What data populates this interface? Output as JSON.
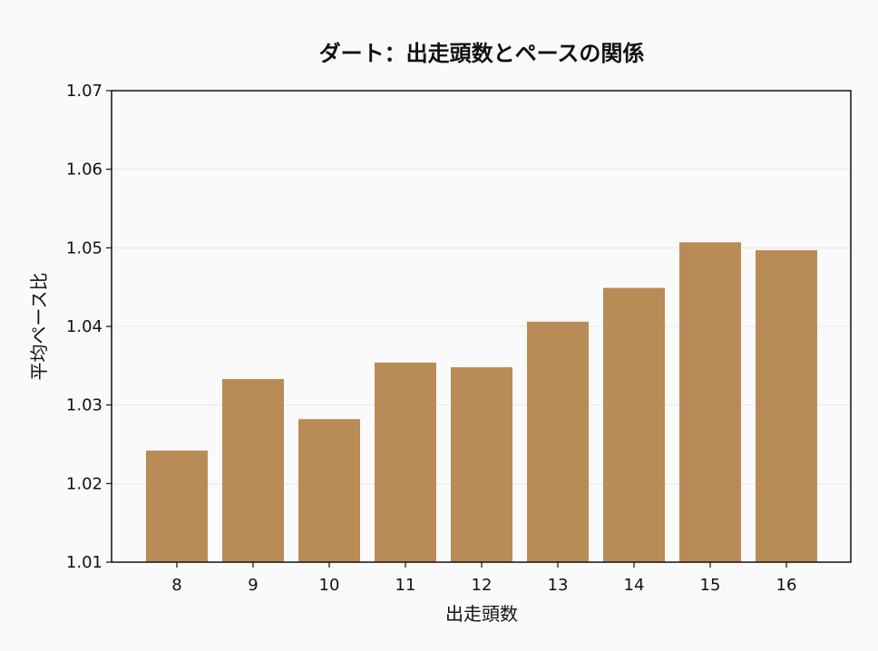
{
  "chart_data": {
    "type": "bar",
    "title": "ダート：出走頭数とペースの関係",
    "xlabel": "出走頭数",
    "ylabel": "平均ペース比",
    "categories": [
      "8",
      "9",
      "10",
      "11",
      "12",
      "13",
      "14",
      "15",
      "16"
    ],
    "values": [
      1.0242,
      1.0333,
      1.0282,
      1.0354,
      1.0348,
      1.0406,
      1.0449,
      1.0507,
      1.0497
    ],
    "ylim": [
      1.01,
      1.07
    ],
    "yticks": [
      "1.01",
      "1.02",
      "1.03",
      "1.04",
      "1.05",
      "1.06",
      "1.07"
    ],
    "grid": "y",
    "bar_color": "#b98b57",
    "background_color": "#fafafa",
    "grid_color": "#e6e6e6",
    "axis_color": "#111111"
  }
}
